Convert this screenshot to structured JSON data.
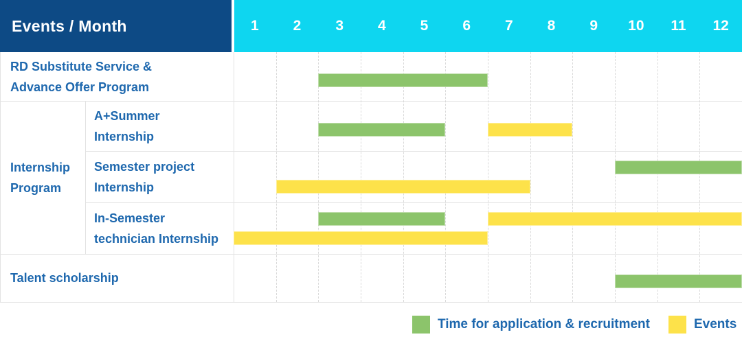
{
  "header": {
    "title": "Events / Month"
  },
  "colors": {
    "header_navy": "#0D4A85",
    "header_cyan": "#0ED6F0",
    "label_blue": "#1E68AE",
    "recruitment_green": "#8CC46B",
    "events_yellow": "#FDE24A"
  },
  "row_labels": {
    "rd_substitute": [
      "RD Substitute Service &",
      "Advance Offer Program"
    ],
    "internship_group": [
      "Internship",
      "Program"
    ],
    "a_plus_summer": [
      "A+Summer",
      "Internship"
    ],
    "semester_project": [
      "Semester project",
      "Internship"
    ],
    "in_semester": [
      "In-Semester",
      "technician Internship"
    ],
    "talent_scholarship": [
      "Talent scholarship"
    ]
  },
  "legend": [
    {
      "label": "Time for application & recruitment",
      "color": "#8CC46B"
    },
    {
      "label": "Events",
      "color": "#FDE24A"
    }
  ],
  "chart_data": {
    "type": "bar",
    "subtype": "gantt-schedule-table",
    "title": "Events / Month",
    "xlabel": "Month",
    "x_range": [
      1,
      12
    ],
    "months": [
      "1",
      "2",
      "3",
      "4",
      "5",
      "6",
      "7",
      "8",
      "9",
      "10",
      "11",
      "12"
    ],
    "series": [
      {
        "name": "Time for application & recruitment",
        "color": "#8CC46B"
      },
      {
        "name": "Events",
        "color": "#FDE24A"
      }
    ],
    "rows": [
      {
        "label": "RD Substitute Service & Advance Offer Program",
        "group": null,
        "tracks": 1,
        "bars": [
          {
            "series": "Time for application & recruitment",
            "start_month": 3,
            "end_month": 6,
            "track": 0
          }
        ]
      },
      {
        "label": "A+Summer Internship",
        "group": "Internship Program",
        "tracks": 1,
        "bars": [
          {
            "series": "Time for application & recruitment",
            "start_month": 3,
            "end_month": 5,
            "track": 0
          },
          {
            "series": "Events",
            "start_month": 7,
            "end_month": 8,
            "track": 0
          }
        ]
      },
      {
        "label": "Semester project Internship",
        "group": "Internship Program",
        "tracks": 2,
        "bars": [
          {
            "series": "Time for application & recruitment",
            "start_month": 10,
            "end_month": 12,
            "track": 0
          },
          {
            "series": "Events",
            "start_month": 2,
            "end_month": 7,
            "track": 1
          }
        ]
      },
      {
        "label": "In-Semester technician Internship",
        "group": "Internship Program",
        "tracks": 2,
        "bars": [
          {
            "series": "Time for application & recruitment",
            "start_month": 3,
            "end_month": 5,
            "track": 0
          },
          {
            "series": "Events",
            "start_month": 7,
            "end_month": 12,
            "track": 0
          },
          {
            "series": "Events",
            "start_month": 1,
            "end_month": 6,
            "track": 1
          }
        ]
      },
      {
        "label": "Talent scholarship",
        "group": null,
        "tracks": 1,
        "bars": [
          {
            "series": "Time for application & recruitment",
            "start_month": 10,
            "end_month": 12,
            "track": 0
          }
        ]
      }
    ]
  }
}
